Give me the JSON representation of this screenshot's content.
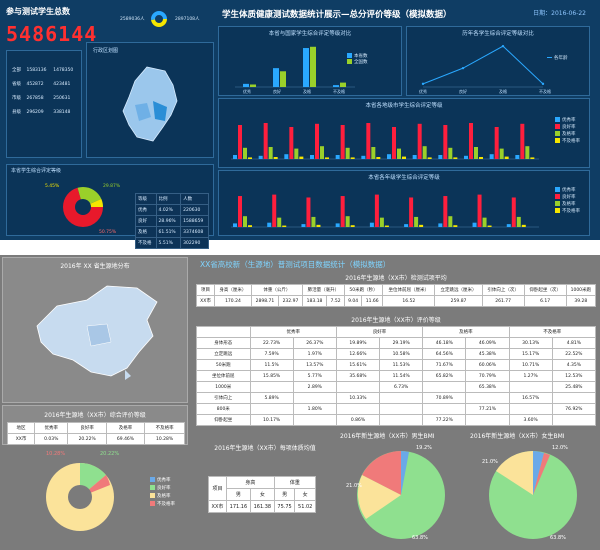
{
  "top": {
    "left_title": "参与测试学生总数",
    "total": "5486144",
    "main_title": "学生体质健康测试数据统计展示—总分评价等级（模拟数据）",
    "date": "日期：2016-06-22",
    "donut_top": {
      "label_left": "2589036人",
      "label_right": "2897108人"
    },
    "region_rows": [
      [
        "全部",
        "1583136",
        "1478350"
      ],
      [
        "省级",
        "452872",
        "423481"
      ],
      [
        "市级",
        "267858",
        "250631"
      ],
      [
        "县级",
        "296209",
        "338148"
      ]
    ],
    "map_title": "行政区划图",
    "bar1_title": "本省与国家学生综合评定等级对比",
    "bar1_legend": [
      "本省数",
      "全国数"
    ],
    "line_title": "历年各学生综合评定等级对比",
    "line_legend": "各年龄",
    "bar2_title": "本省各地级市学生综合评定等级",
    "bar3_title": "本省各年级学生综合评定等级",
    "grade_legend": [
      "优秀率",
      "良好率",
      "及格率",
      "不及格率"
    ],
    "pie_title": "本省学生综合评定等级",
    "pie_labels": [
      "5.45%",
      "29.87%",
      "50.75%"
    ],
    "pie_table": [
      [
        "等级",
        "比例",
        "人数"
      ],
      [
        "优秀",
        "4.02%",
        "220630"
      ],
      [
        "良好",
        "28.96%",
        "1588659"
      ],
      [
        "及格",
        "61.51%",
        "3374608"
      ],
      [
        "不及格",
        "5.51%",
        "302290"
      ]
    ]
  },
  "bottom": {
    "map_title": "2016年 XX 省生源地分布",
    "main_title": "XX省高校新（生源地）普测试项目数据统计（模拟数据）",
    "table1_title": "2016年生源地（XX市）检测试项平均",
    "table1_header": [
      "项目",
      "身高（厘米）",
      "体重（公斤）",
      "肺活量（毫升）",
      "50米跑（秒）",
      "坐位体前屈（厘米）",
      "立定跳远（厘米）",
      "引体向上（次）",
      "仰卧起坐（次）",
      "1000米跑"
    ],
    "table1_row": [
      "XX市",
      "170.24",
      "2898.71",
      "232.97",
      "183.18",
      "7.52",
      "9.04",
      "11.66",
      "16.52",
      "259.87",
      "261.77",
      "6.17",
      "39.28"
    ],
    "table2_title": "2016年生源地（XX市）评价等级",
    "table2_groups": [
      "优秀率",
      "良好率",
      "及格率",
      "不及格率"
    ],
    "table2_rows": [
      [
        "身体形态",
        "22.73%",
        "26.37%",
        "19.89%",
        "29.19%",
        "46.18%",
        "46.09%",
        "30.13%",
        "4.81%"
      ],
      [
        "立定跳远",
        "7.59%",
        "1.97%",
        "12.66%",
        "10.58%",
        "64.56%",
        "45.38%",
        "15.17%",
        "22.52%"
      ],
      [
        "50米跑",
        "11.5%",
        "13.57%",
        "15.61%",
        "11.53%",
        "71.67%",
        "60.06%",
        "10.71%",
        "4.35%"
      ],
      [
        "坐位体前屈",
        "15.85%",
        "5.77%",
        "35.68%",
        "11.54%",
        "65.82%",
        "70.79%",
        "1.27%",
        "12.53%"
      ],
      [
        "1000米",
        "",
        "2.89%",
        "",
        "6.73%",
        "",
        "65.38%",
        "",
        "25.48%"
      ],
      [
        "引体向上",
        "5.89%",
        "",
        "10.33%",
        "",
        "70.89%",
        "",
        "16.57%",
        ""
      ],
      [
        "800米",
        "",
        "1.80%",
        "",
        "",
        "",
        "77.21%",
        "",
        "76.92%"
      ],
      [
        "仰卧起坐",
        "10.17%",
        "",
        "0.86%",
        "",
        "77.22%",
        "",
        "3.60%",
        ""
      ]
    ],
    "table3_title": "2016年生源地（XX市）综合评价等级",
    "table3_header": [
      "地区",
      "优秀率",
      "良好率",
      "及格率",
      "不及格率"
    ],
    "table3_row": [
      "XX市",
      "0.03%",
      "20.22%",
      "69.46%",
      "10.28%"
    ],
    "pie_legend": [
      "优秀率",
      "良好率",
      "及格率",
      "不及格率"
    ],
    "pie_left_labels": [
      "10.28%",
      "20.22%"
    ],
    "table4_title": "2016年生源地（XX市）每项体质均值",
    "table4_header": [
      "身高",
      "体重"
    ],
    "table4_sub": [
      "男",
      "女",
      "男",
      "女"
    ],
    "table4_rowlabel": "XX市",
    "table4_rowhead": "项目",
    "table4_values": [
      "171.16",
      "161.38",
      "75.75",
      "51.02"
    ],
    "bmi_m_title": "2016年新生源地（XX市）男生BMI",
    "bmi_f_title": "2016年新生源地（XX市）女生BMI",
    "bmi_labels": [
      "19.2%",
      "21.0%",
      "12.0%",
      "63.8%"
    ]
  },
  "chart_data": [
    {
      "type": "bar",
      "title": "本省与国家学生综合评定等级对比",
      "categories": [
        "优秀",
        "良好",
        "及格",
        "不及格"
      ],
      "series": [
        {
          "name": "本省数",
          "values": [
            5,
            30,
            62,
            3
          ]
        },
        {
          "name": "全国数",
          "values": [
            4,
            25,
            64,
            7
          ]
        }
      ],
      "ylim": [
        0,
        70
      ]
    },
    {
      "type": "line",
      "title": "历年各学生综合评定等级对比",
      "categories": [
        "优秀",
        "良好",
        "及格",
        "不及格"
      ],
      "series": [
        {
          "name": "各年龄",
          "values": [
            5,
            30,
            65,
            5
          ]
        }
      ],
      "ylim": [
        0,
        70
      ]
    }
  ],
  "colors": {
    "red": "#ff1f3d",
    "green": "#9ad02a",
    "yellow": "#f5e600",
    "blue": "#2aa8ff",
    "pie_yellow": "#fbe39a",
    "pie_green": "#8fe08f",
    "pie_pink": "#f07a7a"
  }
}
